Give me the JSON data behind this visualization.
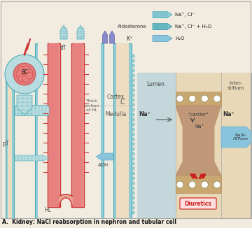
{
  "bg_color": "#f2ece0",
  "title_text": "A.  Kidney: NaCl reabsorption in nephron and tubular cell",
  "colors": {
    "red_tube": "#cc3333",
    "light_red": "#e88080",
    "salmon": "#e8a090",
    "teal_dark": "#4aacb8",
    "teal_light": "#90ccd4",
    "teal_fill": "#b8dce0",
    "blue_light": "#88c4dc",
    "blue_mid": "#70b0d0",
    "beige_tube": "#e0d0a8",
    "beige_light": "#eedcc0",
    "tan_cell": "#c8a870",
    "brown_cell": "#b89060",
    "lumen_bg": "#c4d8dc",
    "interstitium_bg": "#e8d8b8",
    "cell_inner": "#c0906060",
    "diuretics_box": "#fce0e0",
    "diuretics_text": "#cc2020",
    "white": "#ffffff",
    "black": "#111111",
    "gray_line": "#aaaaaa",
    "outer_border": "#888888",
    "teal_tube": "#a8d4d0",
    "green_tube": "#b8d8c8"
  },
  "labels": {
    "dT": "dT",
    "BC": "BC",
    "pT": "pT",
    "C": "C",
    "HL": "HL",
    "Kp": "K⁺",
    "ADH": "ADH",
    "Aldosterone": "Aldosterone",
    "thick_HL": "Thick\nportion\nof HL",
    "Cortex": "Cortex",
    "Medulla": "Medulla",
    "Lumen": "Lumen",
    "Interstitium": "Inter-\nstitium",
    "Na_lumen": "Na⁺",
    "carrier": "\"carrier\"",
    "Na_cell": "Na⁺",
    "Na_right": "Na⁺",
    "NaK": "Na/K-\nATPase",
    "Diuretics": "Diuretics"
  },
  "legend": [
    {
      "label": "Na⁺, Cl⁻",
      "fill": "#90ccd4",
      "edge": "#4aacb8",
      "dotted": true
    },
    {
      "label": "Na⁺, Cl⁻ + H₂O",
      "fill": "#70c0c8",
      "edge": "#3898a8",
      "dotted": true
    },
    {
      "label": "H₂O",
      "fill": "#88c4dc",
      "edge": "#5599bb",
      "dotted": false
    }
  ]
}
